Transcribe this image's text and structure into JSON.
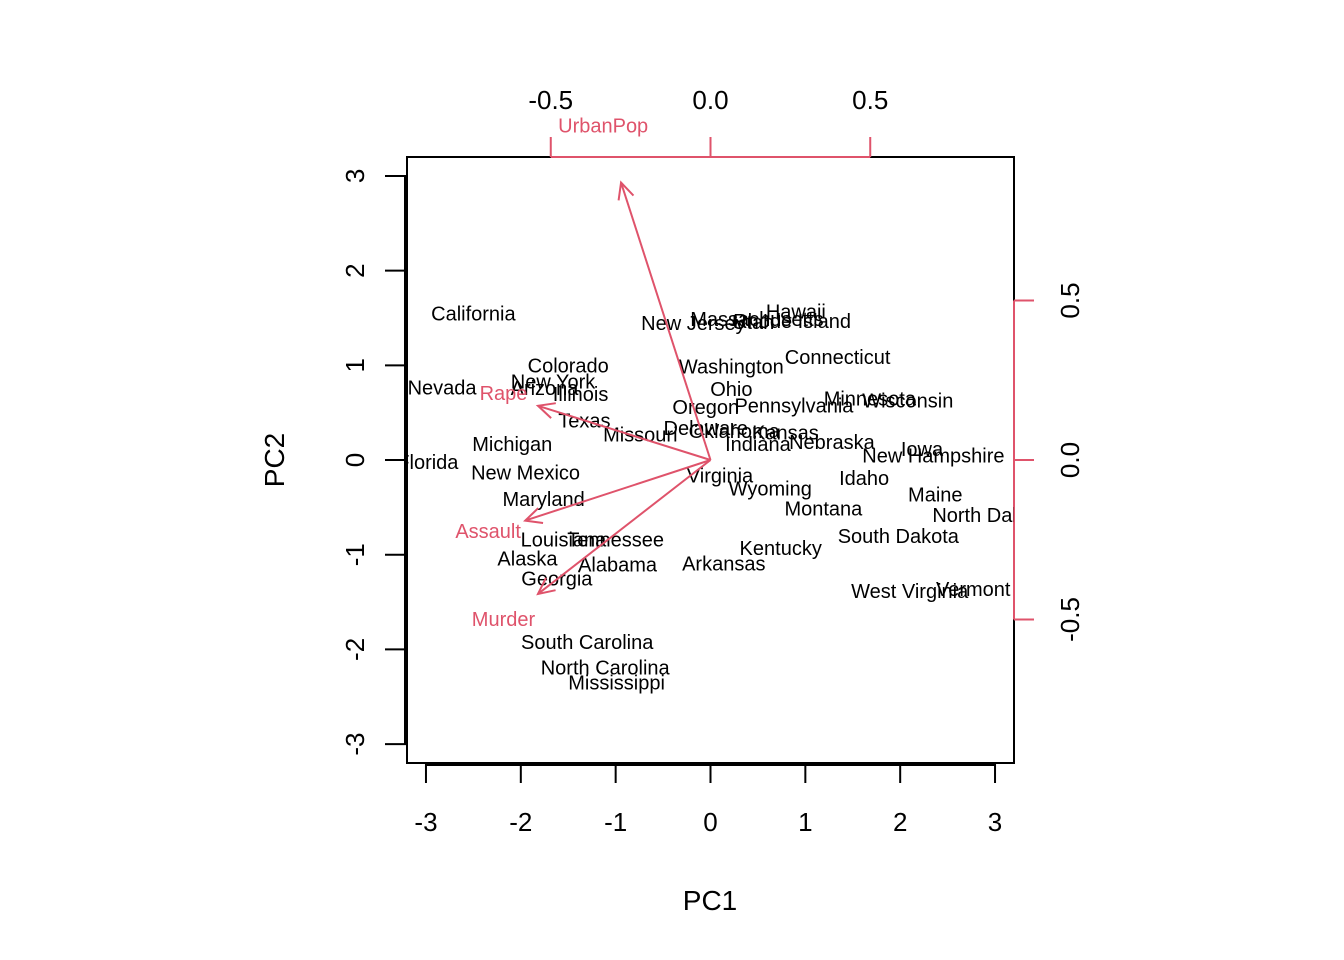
{
  "chart_data": {
    "type": "scatter",
    "subtype": "biplot",
    "xlabel": "PC1",
    "ylabel": "PC2",
    "xlim": [
      -3.2,
      3.2
    ],
    "ylim": [
      -3.2,
      3.2
    ],
    "x_ticks": [
      -3,
      -2,
      -1,
      0,
      1,
      2,
      3
    ],
    "y_ticks": [
      -3,
      -2,
      -1,
      0,
      1,
      2,
      3
    ],
    "loadings_ticks": [
      "-0.5",
      "0.0",
      "0.5"
    ],
    "loadings_ticks_values": [
      -0.5,
      0,
      0.5
    ],
    "loadings_range": [
      -0.95,
      0.95
    ],
    "arrow_color": "#DF536B",
    "point_color": "#000000",
    "points": [
      {
        "label": "Alabama",
        "x": -0.98,
        "y": -1.12
      },
      {
        "label": "Alaska",
        "x": -1.93,
        "y": -1.06
      },
      {
        "label": "Arizona",
        "x": -1.75,
        "y": 0.74
      },
      {
        "label": "Arkansas",
        "x": 0.14,
        "y": -1.11
      },
      {
        "label": "California",
        "x": -2.5,
        "y": 1.53
      },
      {
        "label": "Colorado",
        "x": -1.5,
        "y": 0.98
      },
      {
        "label": "Connecticut",
        "x": 1.34,
        "y": 1.07
      },
      {
        "label": "Delaware",
        "x": -0.05,
        "y": 0.32
      },
      {
        "label": "Florida",
        "x": -2.98,
        "y": -0.04
      },
      {
        "label": "Georgia",
        "x": -1.62,
        "y": -1.27
      },
      {
        "label": "Hawaii",
        "x": 0.9,
        "y": 1.55
      },
      {
        "label": "Idaho",
        "x": 1.62,
        "y": -0.21
      },
      {
        "label": "Illinois",
        "x": -1.37,
        "y": 0.68
      },
      {
        "label": "Indiana",
        "x": 0.5,
        "y": 0.15
      },
      {
        "label": "Iowa",
        "x": 2.23,
        "y": 0.1
      },
      {
        "label": "Kansas",
        "x": 0.79,
        "y": 0.27
      },
      {
        "label": "Kentucky",
        "x": 0.74,
        "y": -0.95
      },
      {
        "label": "Louisiana",
        "x": -1.55,
        "y": -0.86
      },
      {
        "label": "Maine",
        "x": 2.37,
        "y": -0.38
      },
      {
        "label": "Maryland",
        "x": -1.76,
        "y": -0.43
      },
      {
        "label": "Massachusetts",
        "x": 0.49,
        "y": 1.47
      },
      {
        "label": "Michigan",
        "x": -2.09,
        "y": 0.15
      },
      {
        "label": "Minnesota",
        "x": 1.68,
        "y": 0.63
      },
      {
        "label": "Mississippi",
        "x": -0.99,
        "y": -2.37
      },
      {
        "label": "Missouri",
        "x": -0.74,
        "y": 0.25
      },
      {
        "label": "Montana",
        "x": 1.19,
        "y": -0.53
      },
      {
        "label": "Nebraska",
        "x": 1.28,
        "y": 0.17
      },
      {
        "label": "Nevada",
        "x": -2.83,
        "y": 0.75
      },
      {
        "label": "New Hampshire",
        "x": 2.35,
        "y": 0.03
      },
      {
        "label": "New Jersey",
        "x": -0.18,
        "y": 1.43
      },
      {
        "label": "New Mexico",
        "x": -1.95,
        "y": -0.15
      },
      {
        "label": "New York",
        "x": -1.66,
        "y": 0.81
      },
      {
        "label": "North Carolina",
        "x": -1.11,
        "y": -2.21
      },
      {
        "label": "North Dakota",
        "x": 2.96,
        "y": -0.6
      },
      {
        "label": "Ohio",
        "x": 0.22,
        "y": 0.73
      },
      {
        "label": "Oregon",
        "x": -0.05,
        "y": 0.54
      },
      {
        "label": "Pennsylvania",
        "x": 0.88,
        "y": 0.56
      },
      {
        "label": "Rhode Island",
        "x": 0.86,
        "y": 1.45
      },
      {
        "label": "South Carolina",
        "x": -1.3,
        "y": -1.94
      },
      {
        "label": "South Dakota",
        "x": 1.98,
        "y": -0.82
      },
      {
        "label": "Tennessee",
        "x": -1.0,
        "y": -0.86
      },
      {
        "label": "Texas",
        "x": -1.33,
        "y": 0.4
      },
      {
        "label": "Utah",
        "x": 0.45,
        "y": 1.44
      },
      {
        "label": "Vermont",
        "x": 2.77,
        "y": -1.38
      },
      {
        "label": "Virginia",
        "x": 0.1,
        "y": -0.18
      },
      {
        "label": "Washington",
        "x": 0.22,
        "y": 0.97
      },
      {
        "label": "West Virginia",
        "x": 2.1,
        "y": -1.4
      },
      {
        "label": "Wisconsin",
        "x": 2.08,
        "y": 0.61
      },
      {
        "label": "Wyoming",
        "x": 0.63,
        "y": -0.32
      },
      {
        "label": "Oklahoma",
        "x": 0.25,
        "y": 0.29
      }
    ],
    "loadings": [
      {
        "label": "Murder",
        "x": -0.54,
        "y": -0.42
      },
      {
        "label": "Assault",
        "x": -0.58,
        "y": -0.19
      },
      {
        "label": "UrbanPop",
        "x": -0.28,
        "y": 0.87
      },
      {
        "label": "Rape",
        "x": -0.54,
        "y": 0.17
      }
    ]
  }
}
